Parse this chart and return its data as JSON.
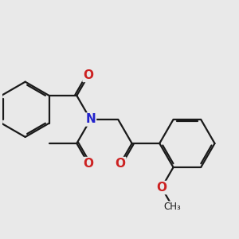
{
  "background_color": "#e9e9e9",
  "bond_color": "#1a1a1a",
  "n_color": "#2222cc",
  "o_color": "#cc2222",
  "bond_width": 1.6,
  "font_size_atom": 11,
  "fig_size": [
    3.0,
    3.0
  ],
  "dpi": 100,
  "xlim": [
    0.0,
    8.5
  ],
  "ylim": [
    1.0,
    9.0
  ]
}
